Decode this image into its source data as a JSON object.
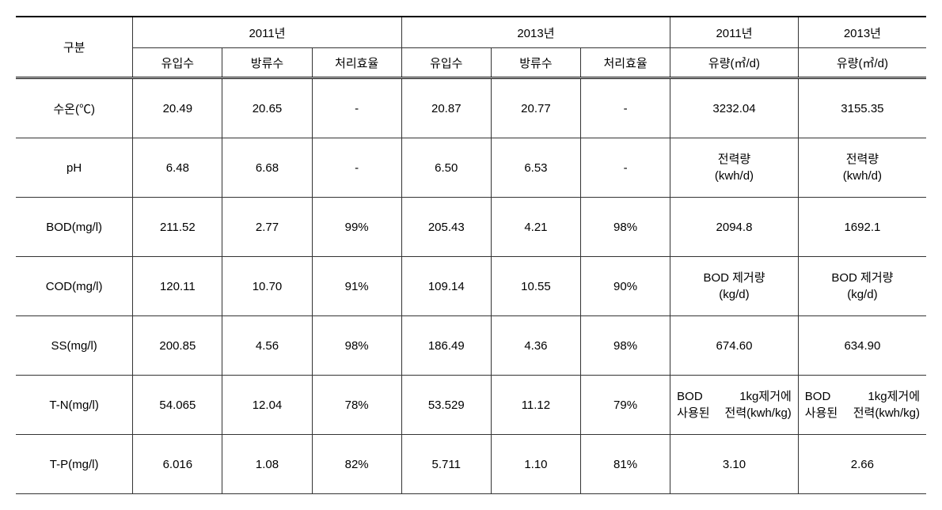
{
  "table": {
    "header": {
      "rowLabel": "구분",
      "group2011": "2011년",
      "group2013": "2013년",
      "flow2011": "2011년",
      "flow2013": "2013년",
      "sub": {
        "influent": "유입수",
        "effluent": "방류수",
        "efficiency": "처리효율",
        "flowRate2011": "유량(㎥/d)",
        "flowRate2013": "유량(㎥/d)"
      }
    },
    "rows": [
      {
        "name": "수온(℃)",
        "a1": "20.49",
        "a2": "20.65",
        "a3": "-",
        "b1": "20.87",
        "b2": "20.77",
        "b3": "-",
        "c1": "3232.04",
        "c2": "3155.35"
      },
      {
        "name": "pH",
        "a1": "6.48",
        "a2": "6.68",
        "a3": "-",
        "b1": "6.50",
        "b2": "6.53",
        "b3": "-",
        "c1": "전력량\n(kwh/d)",
        "c2": "전력량\n(kwh/d)",
        "c1_multi": true,
        "c2_multi": true
      },
      {
        "name": "BOD(mg/l)",
        "a1": "211.52",
        "a2": "2.77",
        "a3": "99%",
        "b1": "205.43",
        "b2": "4.21",
        "b3": "98%",
        "c1": "2094.8",
        "c2": "1692.1"
      },
      {
        "name": "COD(mg/l)",
        "a1": "120.11",
        "a2": "10.70",
        "a3": "91%",
        "b1": "109.14",
        "b2": "10.55",
        "b3": "90%",
        "c1": "BOD 제거량\n(kg/d)",
        "c2": "BOD 제거량\n(kg/d)",
        "c1_multi": true,
        "c2_multi": true
      },
      {
        "name": "SS(mg/l)",
        "a1": "200.85",
        "a2": "4.56",
        "a3": "98%",
        "b1": "186.49",
        "b2": "4.36",
        "b3": "98%",
        "c1": "674.60",
        "c2": "634.90"
      },
      {
        "name": "T-N(mg/l)",
        "a1": "54.065",
        "a2": "12.04",
        "a3": "78%",
        "b1": "53.529",
        "b2": "11.12",
        "b3": "79%",
        "c1": "BOD 1kg제거에 사용된 전력(kwh/kg)",
        "c2": "BOD 1kg제거에 사용된 전력(kwh/kg)",
        "c1_justify": true,
        "c2_justify": true
      },
      {
        "name": "T-P(mg/l)",
        "a1": "6.016",
        "a2": "1.08",
        "a3": "82%",
        "b1": "5.711",
        "b2": "1.10",
        "b3": "81%",
        "c1": "3.10",
        "c2": "2.66"
      }
    ],
    "colors": {
      "border": "#333333",
      "background": "#ffffff",
      "text": "#000000"
    },
    "font_size": 15
  }
}
